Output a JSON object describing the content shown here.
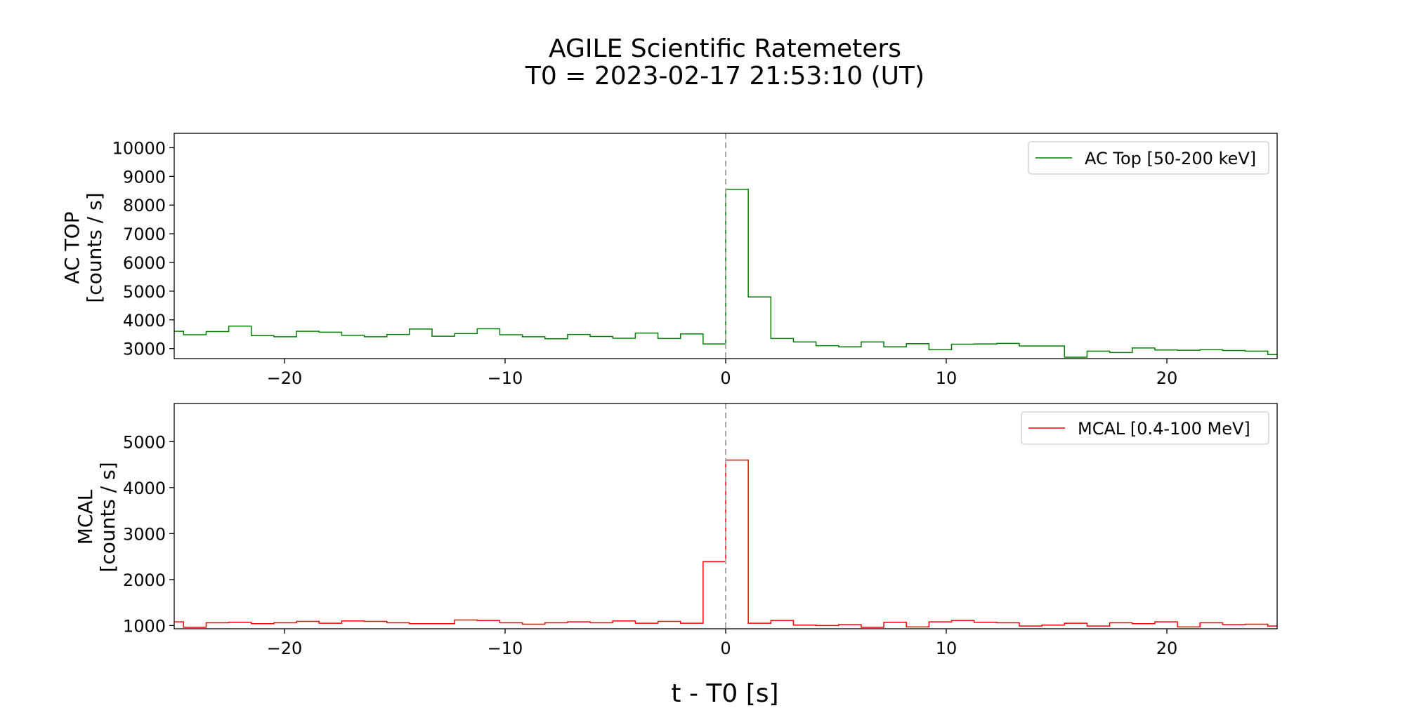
{
  "figure": {
    "title_line1": "AGILE Scientific Ratemeters",
    "title_line2": "T0 = 2023-02-17 21:53:10 (UT)",
    "xlabel": "t - T0 [s]"
  },
  "chart_data": [
    {
      "type": "line",
      "drawstyle": "steps-post",
      "ylabel_line1": "AC TOP",
      "ylabel_line2": "[counts / s]",
      "legend": "AC Top [50-200 keV]",
      "legend_position": "top-right",
      "color": "#008000",
      "xlim": [
        -25,
        25
      ],
      "ylim": [
        2650,
        10500
      ],
      "xticks": [
        -20,
        -10,
        0,
        10,
        20
      ],
      "xtick_labels": [
        "−20",
        "−10",
        "0",
        "10",
        "20"
      ],
      "yticks": [
        3000,
        4000,
        5000,
        6000,
        7000,
        8000,
        9000,
        10000
      ],
      "ytick_labels": [
        "3000",
        "4000",
        "5000",
        "6000",
        "7000",
        "8000",
        "9000",
        "10000"
      ],
      "vline_x": 0,
      "bin_width": 1.024,
      "x": [
        -25.6,
        -24.576,
        -23.552,
        -22.528,
        -21.504,
        -20.48,
        -19.456,
        -18.432,
        -17.408,
        -16.384,
        -15.36,
        -14.336,
        -13.312,
        -12.288,
        -11.264,
        -10.24,
        -9.216,
        -8.192,
        -7.168,
        -6.144,
        -5.12,
        -4.096,
        -3.072,
        -2.048,
        -1.024,
        0.0,
        1.024,
        2.048,
        3.072,
        4.096,
        5.12,
        6.144,
        7.168,
        8.192,
        9.216,
        10.24,
        11.264,
        12.288,
        13.312,
        14.336,
        15.36,
        16.384,
        17.408,
        18.432,
        19.456,
        20.48,
        21.504,
        22.528,
        23.552,
        24.576
      ],
      "values": [
        3600,
        3480,
        3590,
        3780,
        3450,
        3410,
        3600,
        3570,
        3460,
        3410,
        3490,
        3680,
        3430,
        3520,
        3690,
        3480,
        3410,
        3340,
        3490,
        3420,
        3360,
        3540,
        3350,
        3510,
        3160,
        8550,
        4800,
        3350,
        3230,
        3100,
        3060,
        3230,
        3060,
        3170,
        2960,
        3150,
        3160,
        3180,
        3090,
        3090,
        2700,
        2910,
        2860,
        3020,
        2950,
        2940,
        2960,
        2930,
        2910,
        2790
      ]
    },
    {
      "type": "line",
      "drawstyle": "steps-post",
      "ylabel_line1": "MCAL",
      "ylabel_line2": "[counts / s]",
      "legend": "MCAL [0.4-100 MeV]",
      "legend_position": "top-right",
      "color": "#ff0000",
      "xlim": [
        -25,
        25
      ],
      "ylim": [
        930,
        5830
      ],
      "xticks": [
        -20,
        -10,
        0,
        10,
        20
      ],
      "xtick_labels": [
        "−20",
        "−10",
        "0",
        "10",
        "20"
      ],
      "yticks": [
        1000,
        2000,
        3000,
        4000,
        5000
      ],
      "ytick_labels": [
        "1000",
        "2000",
        "3000",
        "4000",
        "5000"
      ],
      "vline_x": 0,
      "bin_width": 1.024,
      "x": [
        -25.6,
        -24.576,
        -23.552,
        -22.528,
        -21.504,
        -20.48,
        -19.456,
        -18.432,
        -17.408,
        -16.384,
        -15.36,
        -14.336,
        -13.312,
        -12.288,
        -11.264,
        -10.24,
        -9.216,
        -8.192,
        -7.168,
        -6.144,
        -5.12,
        -4.096,
        -3.072,
        -2.048,
        -1.024,
        0.0,
        1.024,
        2.048,
        3.072,
        4.096,
        5.12,
        6.144,
        7.168,
        8.192,
        9.216,
        10.24,
        11.264,
        12.288,
        13.312,
        14.336,
        15.36,
        16.384,
        17.408,
        18.432,
        19.456,
        20.48,
        21.504,
        22.528,
        23.552,
        24.576
      ],
      "values": [
        1080,
        960,
        1060,
        1070,
        1040,
        1060,
        1090,
        1050,
        1100,
        1090,
        1060,
        1040,
        1040,
        1120,
        1110,
        1060,
        1030,
        1060,
        1080,
        1060,
        1100,
        1050,
        1090,
        1050,
        2390,
        4600,
        1050,
        1110,
        1010,
        1000,
        1020,
        960,
        1070,
        970,
        1080,
        1110,
        1070,
        1060,
        990,
        1010,
        1050,
        990,
        1060,
        1040,
        1080,
        970,
        1060,
        1020,
        1030,
        990
      ]
    }
  ]
}
